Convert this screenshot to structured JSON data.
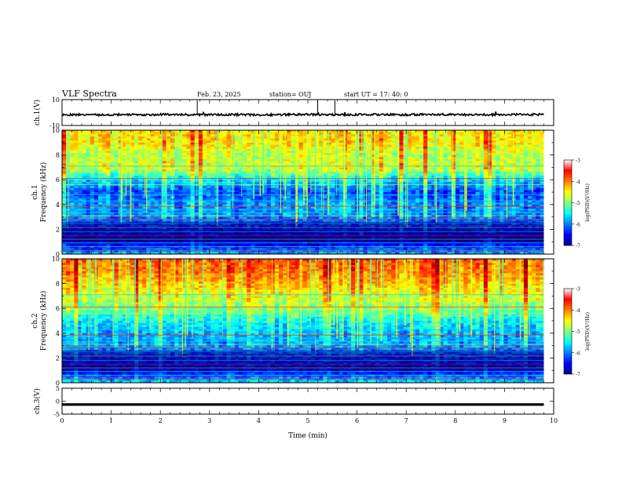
{
  "header": {
    "title": "VLF Spectra",
    "date": "Feb. 23, 2025",
    "station": "station= OUJ",
    "start": "start UT =   17: 40: 0"
  },
  "chart_data": [
    {
      "type": "line",
      "panel": "ch1-waveform",
      "ylabel": "ch.1(V)",
      "ylim": [
        -10,
        10
      ],
      "yticks": [
        "10",
        "-10"
      ],
      "x": [
        0,
        0.5,
        1,
        1.5,
        2,
        2.5,
        3,
        3.5,
        4,
        4.5,
        5,
        5.5,
        6,
        6.5,
        7,
        7.5,
        8,
        8.5,
        9,
        9.5,
        9.8
      ],
      "series": [
        {
          "values": [
            -1.5,
            -1.8,
            -1.6,
            -1.7,
            -1.5,
            -1.6,
            -1.7,
            -1.6,
            -1.8,
            -1.6,
            -1.5,
            -1.7,
            -1.6,
            -1.6,
            -1.7,
            -1.5,
            -1.6,
            -1.7,
            -1.6,
            -1.6,
            -1.6
          ]
        }
      ],
      "color": "#000000"
    },
    {
      "type": "heatmap",
      "panel": "ch1-spectrogram",
      "ylabel": [
        "ch.1",
        "Frequency (kHz)"
      ],
      "ylim": [
        0,
        10
      ],
      "yticks": [
        "0",
        "2",
        "4",
        "6",
        "8",
        "10"
      ],
      "xlim": [
        0,
        10
      ],
      "data_extent_min": 9.8,
      "colorbar": {
        "label": "log(PSD)(V²/Hz)",
        "range": [
          -7,
          -3
        ],
        "ticks": [
          "-3",
          "-4",
          "-5",
          "-6",
          "-7"
        ]
      },
      "freq_profile_khz": [
        0,
        1,
        2,
        2.5,
        3,
        4,
        5,
        6,
        7,
        8,
        9,
        10
      ],
      "log_psd_profile": [
        -5.8,
        -6.8,
        -6.5,
        -6.2,
        -6.0,
        -5.9,
        -6.2,
        -5.6,
        -4.6,
        -4.8,
        -4.4,
        -4.4
      ]
    },
    {
      "type": "heatmap",
      "panel": "ch2-spectrogram",
      "ylabel": [
        "ch.2",
        "Frequency (kHz)"
      ],
      "ylim": [
        0,
        10
      ],
      "yticks": [
        "0",
        "2",
        "4",
        "6",
        "8",
        "10"
      ],
      "xlim": [
        0,
        10
      ],
      "data_extent_min": 9.8,
      "colorbar": {
        "label": "log(PSD)(V²/Hz)",
        "range": [
          -7,
          -3
        ],
        "ticks": [
          "-3",
          "-4",
          "-5",
          "-6",
          "-7"
        ]
      },
      "freq_profile_khz": [
        0,
        1,
        2,
        2.5,
        3,
        4,
        5,
        6,
        7,
        8,
        9,
        10
      ],
      "log_psd_profile": [
        -5.6,
        -6.7,
        -6.4,
        -6.1,
        -5.9,
        -5.8,
        -5.5,
        -5.0,
        -4.6,
        -4.3,
        -4.0,
        -3.9
      ]
    },
    {
      "type": "line",
      "panel": "ch3-waveform",
      "ylabel": "ch.3(V)",
      "ylim": [
        -5,
        5
      ],
      "yticks": [
        "5",
        "0",
        "-5"
      ],
      "x": [
        0,
        9.8
      ],
      "series": [
        {
          "values": [
            -1.3,
            -1.3
          ]
        }
      ],
      "color": "#000000"
    }
  ],
  "xaxis": {
    "label": "Time (min)",
    "ticks": [
      "0",
      "1",
      "2",
      "3",
      "4",
      "5",
      "6",
      "7",
      "8",
      "9",
      "10"
    ],
    "xlim": [
      0,
      10
    ]
  }
}
